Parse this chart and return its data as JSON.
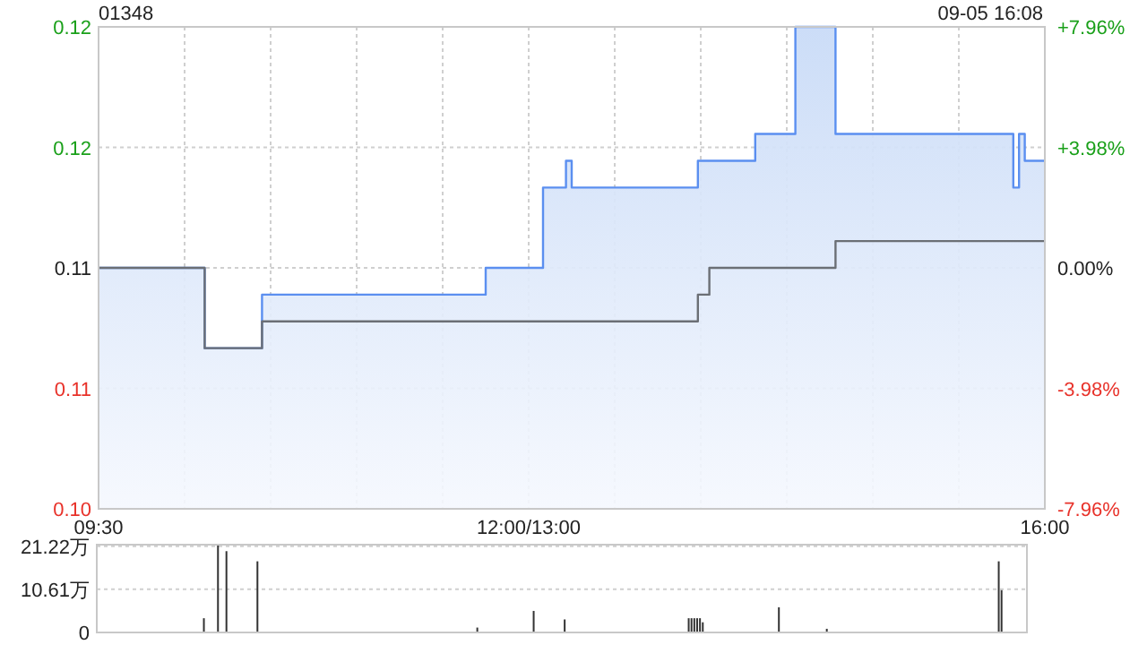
{
  "chart_data": [
    {
      "type": "line",
      "title": "01348",
      "annotations": [
        "09-05 16:08"
      ],
      "categories": [
        "09:30",
        null,
        null,
        null,
        null,
        null,
        null,
        null,
        null,
        null,
        null,
        null,
        null,
        null,
        null,
        null,
        null,
        null,
        null,
        null,
        null,
        null,
        null,
        null,
        null,
        null,
        null,
        null,
        null,
        null,
        null,
        null,
        null,
        null,
        null,
        null,
        null,
        null,
        null,
        null,
        null,
        null,
        null,
        null,
        null,
        null,
        null,
        null,
        null,
        null,
        null,
        null,
        null,
        null,
        null,
        null,
        null,
        null,
        null,
        null,
        null,
        null,
        null,
        null,
        null,
        null,
        null,
        null,
        null,
        null,
        null,
        null,
        null,
        null,
        null,
        "12:00/13:00",
        null,
        null,
        null,
        null,
        null,
        null,
        null,
        null,
        null,
        null,
        null,
        null,
        null,
        null,
        null,
        null,
        null,
        null,
        null,
        null,
        null,
        null,
        null,
        null,
        null,
        null,
        null,
        null,
        null,
        null,
        null,
        null,
        null,
        null,
        null,
        null,
        null,
        null,
        null,
        null,
        null,
        null,
        null,
        null,
        null,
        null,
        null,
        null,
        null,
        null,
        null,
        null,
        null,
        null,
        null,
        null,
        null,
        null,
        null,
        null,
        null,
        null,
        null,
        null,
        null,
        null,
        null,
        null,
        null,
        null,
        null,
        null,
        null,
        null,
        null,
        null,
        null,
        null,
        null,
        null,
        null,
        null,
        null,
        null,
        null,
        null,
        null,
        null,
        null,
        "16:00"
      ],
      "ylim": [
        0.104,
        0.122
      ],
      "yticks": [
        {
          "value": 0.104,
          "label": "0.10"
        },
        {
          "value": 0.1085,
          "label": "0.11"
        },
        {
          "value": 0.113,
          "label": "0.11"
        },
        {
          "value": 0.1175,
          "label": "0.12"
        },
        {
          "value": 0.122,
          "label": "0.12"
        }
      ],
      "y2lim": [
        -7.96,
        7.96
      ],
      "y2ticks": [
        {
          "value": -7.96,
          "label": "-7.96%"
        },
        {
          "value": -3.98,
          "label": "-3.98%"
        },
        {
          "value": 0,
          "label": "0.00%"
        },
        {
          "value": 3.98,
          "label": "+3.98%"
        },
        {
          "value": 7.96,
          "label": "+7.96%"
        }
      ],
      "grid": true,
      "series": [
        {
          "type": "area",
          "color": "#5b8ff0",
          "values": [
            0.113,
            0.113,
            0.113,
            0.113,
            0.113,
            0.113,
            0.113,
            0.113,
            0.113,
            0.113,
            0.113,
            0.113,
            0.113,
            0.113,
            0.113,
            0.113,
            0.113,
            0.113,
            0.113,
            0.11,
            0.11,
            0.11,
            0.11,
            0.11,
            0.11,
            0.11,
            0.11,
            0.11,
            0.11,
            0.112,
            0.112,
            0.112,
            0.112,
            0.112,
            0.112,
            0.112,
            0.112,
            0.112,
            0.112,
            0.112,
            0.112,
            0.112,
            0.112,
            0.112,
            0.112,
            0.112,
            0.112,
            0.112,
            0.112,
            0.112,
            0.112,
            0.112,
            0.112,
            0.112,
            0.112,
            0.112,
            0.112,
            0.112,
            0.112,
            0.112,
            0.112,
            0.112,
            0.112,
            0.112,
            0.112,
            0.112,
            0.112,
            0.112,
            0.113,
            0.113,
            0.113,
            0.113,
            0.113,
            0.113,
            0.113,
            0.113,
            0.113,
            0.113,
            0.116,
            0.116,
            0.116,
            0.116,
            0.117,
            0.116,
            0.116,
            0.116,
            0.116,
            0.116,
            0.116,
            0.116,
            0.116,
            0.116,
            0.116,
            0.116,
            0.116,
            0.116,
            0.116,
            0.116,
            0.116,
            0.116,
            0.116,
            0.116,
            0.116,
            0.116,
            0.116,
            0.117,
            0.117,
            0.117,
            0.117,
            0.117,
            0.117,
            0.117,
            0.117,
            0.117,
            0.117,
            0.118,
            0.118,
            0.118,
            0.118,
            0.118,
            0.118,
            0.118,
            0.122,
            0.122,
            0.122,
            0.122,
            0.122,
            0.122,
            0.122,
            0.118,
            0.118,
            0.118,
            0.118,
            0.118,
            0.118,
            0.118,
            0.118,
            0.118,
            0.118,
            0.118,
            0.118,
            0.118,
            0.118,
            0.118,
            0.118,
            0.118,
            0.118,
            0.118,
            0.118,
            0.118,
            0.118,
            0.118,
            0.118,
            0.118,
            0.118,
            0.118,
            0.118,
            0.118,
            0.118,
            0.118,
            0.116,
            0.118,
            0.117,
            0.117,
            0.117,
            0.117
          ]
        },
        {
          "type": "line",
          "color": "#6b6f75",
          "values": [
            0.113,
            0.113,
            0.113,
            0.113,
            0.113,
            0.113,
            0.113,
            0.113,
            0.113,
            0.113,
            0.113,
            0.113,
            0.113,
            0.113,
            0.113,
            0.113,
            0.113,
            0.113,
            0.113,
            0.11,
            0.11,
            0.11,
            0.11,
            0.11,
            0.11,
            0.11,
            0.11,
            0.11,
            0.11,
            0.111,
            0.111,
            0.111,
            0.111,
            0.111,
            0.111,
            0.111,
            0.111,
            0.111,
            0.111,
            0.111,
            0.111,
            0.111,
            0.111,
            0.111,
            0.111,
            0.111,
            0.111,
            0.111,
            0.111,
            0.111,
            0.111,
            0.111,
            0.111,
            0.111,
            0.111,
            0.111,
            0.111,
            0.111,
            0.111,
            0.111,
            0.111,
            0.111,
            0.111,
            0.111,
            0.111,
            0.111,
            0.111,
            0.111,
            0.111,
            0.111,
            0.111,
            0.111,
            0.111,
            0.111,
            0.111,
            0.111,
            0.111,
            0.111,
            0.111,
            0.111,
            0.111,
            0.111,
            0.111,
            0.111,
            0.111,
            0.111,
            0.111,
            0.111,
            0.111,
            0.111,
            0.111,
            0.111,
            0.111,
            0.111,
            0.111,
            0.111,
            0.111,
            0.111,
            0.111,
            0.111,
            0.111,
            0.111,
            0.111,
            0.111,
            0.111,
            0.112,
            0.112,
            0.113,
            0.113,
            0.113,
            0.113,
            0.113,
            0.113,
            0.113,
            0.113,
            0.113,
            0.113,
            0.113,
            0.113,
            0.113,
            0.113,
            0.113,
            0.113,
            0.113,
            0.113,
            0.113,
            0.113,
            0.113,
            0.113,
            0.114,
            0.114,
            0.114,
            0.114,
            0.114,
            0.114,
            0.114,
            0.114,
            0.114,
            0.114,
            0.114,
            0.114,
            0.114,
            0.114,
            0.114,
            0.114,
            0.114,
            0.114,
            0.114,
            0.114,
            0.114,
            0.114,
            0.114,
            0.114,
            0.114,
            0.114,
            0.114,
            0.114,
            0.114,
            0.114,
            0.114,
            0.114,
            0.114,
            0.114,
            0.114,
            0.114,
            0.114
          ]
        }
      ]
    },
    {
      "type": "bar",
      "ylim": [
        0,
        21.6
      ],
      "yticks": [
        0,
        {
          "value": 10.61,
          "label": "10.61万"
        },
        {
          "value": 21.22,
          "label": "21.22万"
        }
      ],
      "grid": "y",
      "tick_labels": "y",
      "color": "#333333",
      "categories": [
        null,
        null,
        null,
        null,
        null,
        null,
        null,
        null,
        null,
        null,
        null,
        null,
        null,
        null,
        null,
        null,
        null,
        null,
        null,
        null,
        null,
        null,
        null,
        null,
        null,
        null,
        null,
        null,
        null,
        null,
        null,
        null,
        null,
        null,
        null,
        null,
        null,
        null,
        null,
        null,
        null,
        null,
        null,
        null,
        null,
        null,
        null,
        null,
        null,
        null,
        null,
        null,
        null,
        null,
        null,
        null,
        null,
        null,
        null,
        null,
        null,
        null,
        null,
        null,
        null,
        null,
        null,
        null,
        null,
        null,
        null,
        null,
        null,
        null,
        null,
        null,
        null,
        null,
        null,
        null,
        null,
        null,
        null,
        null,
        null,
        null,
        null,
        null,
        null,
        null,
        null,
        null,
        null,
        null,
        null,
        null,
        null,
        null,
        null,
        null,
        null,
        null,
        null,
        null,
        null,
        null,
        null,
        null,
        null,
        null,
        null,
        null,
        null,
        null,
        null,
        null,
        null,
        null,
        null,
        null,
        null,
        null,
        null,
        null,
        null,
        null,
        null,
        null,
        null,
        null,
        null,
        null,
        null,
        null,
        null,
        null,
        null,
        null,
        null,
        null,
        null,
        null,
        null,
        null,
        null,
        null,
        null,
        null,
        null,
        null,
        null,
        null,
        null,
        null,
        null,
        null,
        null,
        null,
        null,
        null,
        null,
        null,
        null,
        null,
        null,
        null,
        null,
        null,
        null,
        null,
        null,
        null,
        null,
        null,
        null,
        null,
        null,
        null,
        null,
        null,
        null,
        null,
        null,
        null,
        null,
        null,
        null,
        null,
        null,
        null,
        null,
        null,
        null,
        null,
        null,
        null,
        null,
        null,
        null,
        null,
        null,
        null,
        null,
        null,
        null,
        null,
        null,
        null,
        null,
        null,
        null,
        null,
        null,
        null,
        null,
        null,
        null,
        null,
        null,
        null,
        null,
        null,
        null,
        null,
        null,
        null,
        null,
        null,
        null,
        null,
        null,
        null,
        null,
        null,
        null,
        null,
        null,
        null,
        null,
        null,
        null,
        null,
        null,
        null,
        null,
        null,
        null,
        null,
        null,
        null,
        null,
        null,
        null,
        null,
        null,
        null,
        null,
        null,
        null,
        null,
        null,
        null,
        null,
        null,
        null,
        null,
        null,
        null,
        null,
        null,
        null,
        null,
        null,
        null,
        null,
        null,
        null,
        null,
        null,
        null,
        null,
        null,
        null,
        null,
        null,
        null,
        null,
        null,
        null,
        null,
        null,
        null,
        null,
        null,
        null,
        null,
        null,
        null,
        null,
        null,
        null,
        null,
        null,
        null,
        null,
        null,
        null,
        null,
        null,
        null,
        null,
        null,
        null,
        null,
        null,
        null,
        null,
        null,
        null,
        null,
        null,
        null,
        null,
        null,
        null,
        null,
        null,
        null,
        null,
        null,
        null
      ],
      "values": [
        null,
        null,
        null,
        null,
        null,
        null,
        null,
        null,
        null,
        null,
        null,
        null,
        null,
        null,
        null,
        null,
        null,
        null,
        null,
        null,
        null,
        null,
        null,
        null,
        null,
        null,
        null,
        null,
        null,
        null,
        null,
        null,
        null,
        null,
        null,
        null,
        null,
        null,
        3.5,
        null,
        null,
        null,
        null,
        21.4,
        null,
        null,
        20.0,
        null,
        null,
        null,
        null,
        null,
        null,
        null,
        null,
        null,
        null,
        17.5,
        null,
        null,
        null,
        null,
        null,
        null,
        null,
        null,
        null,
        null,
        null,
        null,
        null,
        null,
        null,
        null,
        null,
        null,
        null,
        null,
        null,
        null,
        null,
        null,
        null,
        null,
        null,
        null,
        null,
        null,
        null,
        null,
        null,
        null,
        null,
        null,
        null,
        null,
        null,
        null,
        null,
        null,
        null,
        null,
        null,
        null,
        null,
        null,
        null,
        null,
        null,
        null,
        null,
        null,
        null,
        null,
        null,
        null,
        null,
        null,
        null,
        null,
        null,
        null,
        null,
        null,
        null,
        null,
        null,
        null,
        null,
        null,
        null,
        null,
        null,
        null,
        null,
        1.2,
        null,
        null,
        null,
        null,
        null,
        null,
        null,
        null,
        null,
        null,
        null,
        null,
        null,
        null,
        null,
        null,
        null,
        null,
        null,
        5.3,
        null,
        null,
        null,
        null,
        null,
        null,
        null,
        null,
        null,
        null,
        3.2,
        null,
        null,
        null,
        null,
        null,
        null,
        null,
        null,
        null,
        null,
        null,
        null,
        null,
        null,
        null,
        null,
        null,
        null,
        null,
        null,
        null,
        null,
        null,
        null,
        null,
        null,
        null,
        null,
        null,
        null,
        null,
        null,
        null,
        null,
        null,
        null,
        null,
        null,
        null,
        null,
        null,
        null,
        null,
        3.5,
        3.5,
        3.5,
        3.5,
        3.5,
        2.5,
        null,
        null,
        null,
        null,
        null,
        null,
        null,
        null,
        null,
        null,
        null,
        null,
        null,
        null,
        null,
        null,
        null,
        null,
        null,
        null,
        null,
        null,
        null,
        null,
        null,
        null,
        6.2,
        null,
        null,
        null,
        null,
        null,
        null,
        null,
        null,
        null,
        null,
        null,
        null,
        null,
        null,
        null,
        null,
        0.9,
        null,
        null,
        null,
        null,
        null,
        null,
        null,
        null,
        null,
        null,
        null,
        null,
        null,
        null,
        null,
        null,
        null,
        null,
        null,
        null,
        null,
        null,
        null,
        null,
        null,
        null,
        null,
        null,
        null,
        null,
        null,
        null,
        null,
        null,
        null,
        null,
        null,
        null,
        null,
        null,
        null,
        null,
        null,
        null,
        null,
        null,
        null,
        null,
        null,
        null,
        null,
        null,
        null,
        null,
        null,
        null,
        null,
        null,
        null,
        null,
        17.5,
        10.4,
        null,
        null,
        null,
        null,
        null,
        null,
        null,
        null,
        null
      ]
    }
  ]
}
